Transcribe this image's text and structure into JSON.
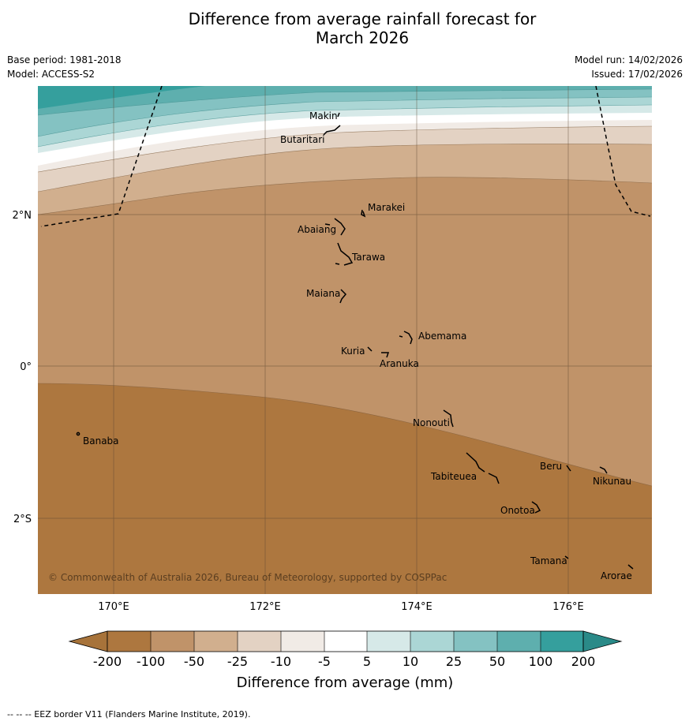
{
  "title_line1": "Difference from average rainfall forecast for",
  "title_line2": "March 2026",
  "base_period": "Base period: 1981-2018",
  "model": "Model: ACCESS-S2",
  "model_run": "Model run: 14/02/2026",
  "issued": "Issued: 17/02/2026",
  "copyright": "© Commonwealth of Australia 2026, Bureau of Meteorology, supported by COSPPac",
  "footer": "--  --  -- EEZ border V11 (Flanders Marine Institute, 2019).",
  "axes": {
    "lon_ticks": [
      "170°E",
      "172°E",
      "174°E",
      "176°E"
    ],
    "lat_ticks": [
      "2°N",
      "0°",
      "2°S"
    ]
  },
  "places": [
    "Makin",
    "Butaritari",
    "Marakei",
    "Abaiang",
    "Tarawa",
    "Maiana",
    "Abemama",
    "Kuria",
    "Aranuka",
    "Nonouti",
    "Banaba",
    "Beru",
    "Tabiteuea",
    "Nikunau",
    "Onotoa",
    "Tamana",
    "Arorae"
  ],
  "colorbar": {
    "label": "Difference from average (mm)",
    "ticks": [
      "-200",
      "-100",
      "-50",
      "-25",
      "-10",
      "-5",
      "5",
      "10",
      "25",
      "50",
      "100",
      "200"
    ],
    "colors": {
      "lt_neg200": "#a7733a",
      "neg200_neg100": "#ad773f",
      "neg100_neg50": "#c09369",
      "neg50_neg25": "#d1af8e",
      "neg25_neg10": "#e3d2c3",
      "neg10_neg5": "#f1ebe6",
      "neg5_5": "#ffffff",
      "p5_10": "#d6e9e8",
      "p10_25": "#abd6d5",
      "p25_50": "#84c2c2",
      "p50_100": "#5eafae",
      "p100_200": "#359f9d",
      "gt_200": "#2a8a88"
    }
  }
}
